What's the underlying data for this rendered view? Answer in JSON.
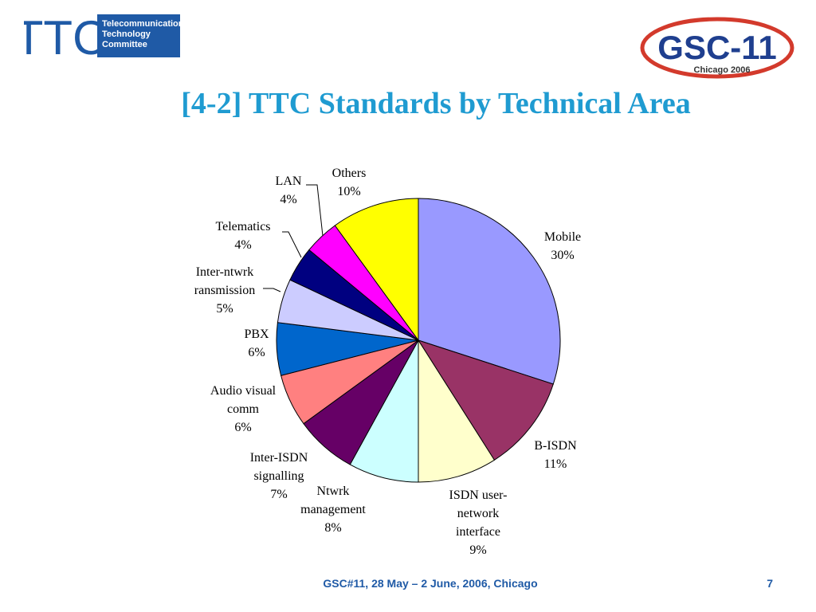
{
  "header": {
    "ttc_logo": {
      "letters": "TTC",
      "lines": [
        "Telecommunication",
        "Technology",
        "Committee"
      ]
    },
    "gsc_logo": {
      "text": "GSC-11",
      "subtitle": "Chicago 2006"
    }
  },
  "title": "[4-2] TTC Standards by Technical Area",
  "chart_data": {
    "type": "pie",
    "title": "",
    "start": "12 o'clock",
    "direction": "clockwise",
    "slices": [
      {
        "label": [
          "Mobile"
        ],
        "pct": "30%",
        "value": 30,
        "color": "#9999ff"
      },
      {
        "label": [
          "B-ISDN"
        ],
        "pct": "11%",
        "value": 11,
        "color": "#993366"
      },
      {
        "label": [
          "ISDN user-",
          "network",
          "interface"
        ],
        "pct": "9%",
        "value": 9,
        "color": "#ffffcc"
      },
      {
        "label": [
          "Ntwrk",
          "management"
        ],
        "pct": "8%",
        "value": 8,
        "color": "#ccffff"
      },
      {
        "label": [
          "Inter-ISDN",
          "signalling"
        ],
        "pct": "7%",
        "value": 7,
        "color": "#660066"
      },
      {
        "label": [
          "Audio visual",
          "comm"
        ],
        "pct": "6%",
        "value": 6,
        "color": "#ff8080"
      },
      {
        "label": [
          "PBX"
        ],
        "pct": "6%",
        "value": 6,
        "color": "#0066cc"
      },
      {
        "label": [
          "Inter-ntwrk",
          "ransmission"
        ],
        "pct": "5%",
        "value": 5,
        "color": "#ccccff"
      },
      {
        "label": [
          "Telematics"
        ],
        "pct": "4%",
        "value": 4,
        "color": "#000080"
      },
      {
        "label": [
          "LAN"
        ],
        "pct": "4%",
        "value": 4,
        "color": "#ff00ff"
      },
      {
        "label": [
          "Others"
        ],
        "pct": "10%",
        "value": 10,
        "color": "#ffff00"
      }
    ]
  },
  "footer": {
    "text": "GSC#11, 28 May – 2 June, 2006, Chicago",
    "page_number": "7"
  }
}
